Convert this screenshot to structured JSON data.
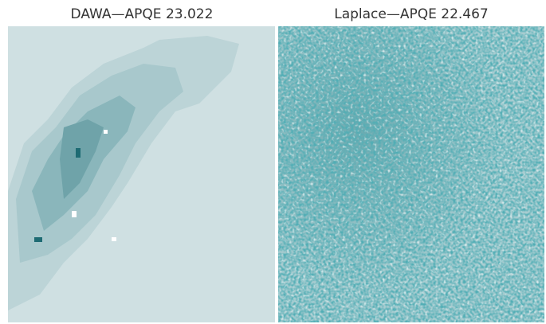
{
  "panels": [
    {
      "title": "DAWA—APQE 23.022"
    },
    {
      "title": "Laplace—APQE 22.467"
    }
  ]
}
